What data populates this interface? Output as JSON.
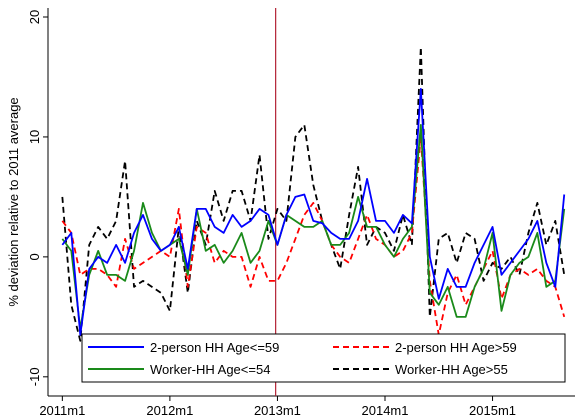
{
  "chart_data": {
    "type": "line",
    "y_label": "% deviation relative to 2011 average",
    "x": [
      0,
      1,
      2,
      3,
      4,
      5,
      6,
      7,
      8,
      9,
      10,
      11,
      12,
      13,
      14,
      15,
      16,
      17,
      18,
      19,
      20,
      21,
      22,
      23,
      24,
      25,
      26,
      27,
      28,
      29,
      30,
      31,
      32,
      33,
      34,
      35,
      36,
      37,
      38,
      39,
      40,
      41,
      42,
      43,
      44,
      45,
      46,
      47,
      48,
      49,
      50,
      51,
      52,
      53,
      54,
      55,
      56
    ],
    "xlim": [
      -1.6,
      57.2
    ],
    "xticks": [
      {
        "value": 0,
        "label": "2011m1"
      },
      {
        "value": 12,
        "label": "2012m1"
      },
      {
        "value": 24,
        "label": "2013m1"
      },
      {
        "value": 36,
        "label": "2014m1"
      },
      {
        "value": 48,
        "label": "2015m1"
      }
    ],
    "ylim": [
      -11.6,
      20.75
    ],
    "yticks": [
      -10,
      0,
      10,
      20
    ],
    "vline": {
      "value": 23.8,
      "color": "#b22234"
    },
    "legend": "bottom",
    "series": [
      {
        "name": "2-person HH Age<=59",
        "color": "#0000ff",
        "dash": false,
        "values": [
          1,
          2,
          -6.5,
          -1,
          0,
          -0.5,
          1,
          -0.5,
          2,
          3.5,
          1.5,
          0.5,
          1,
          2.5,
          -1,
          4,
          4,
          2.5,
          2,
          3.5,
          2.5,
          3,
          4,
          3.5,
          1,
          3.5,
          5,
          5.2,
          3,
          2.8,
          2,
          1.5,
          1.5,
          3,
          6.5,
          3,
          3,
          2,
          3.5,
          2.8,
          14,
          0,
          -3.5,
          -1,
          -2.5,
          -2.5,
          -0.5,
          1,
          2.5,
          -1.5,
          -0.5,
          0.5,
          1.5,
          3,
          -0.5,
          -2.5,
          5.2
        ]
      },
      {
        "name": "2-person HH Age>59",
        "color": "#ff0000",
        "dash": true,
        "values": [
          3,
          2,
          -1.5,
          -1,
          -1,
          -1.5,
          -2.5,
          1.5,
          -1,
          -0.5,
          0,
          0.5,
          0,
          4,
          -2.5,
          2.5,
          2,
          -0.5,
          0.5,
          0,
          0,
          -2.5,
          0,
          -2,
          -2,
          -0.5,
          1.5,
          3.5,
          4.5,
          3,
          1,
          0,
          -0.5,
          1.5,
          3.5,
          1.5,
          1,
          0,
          0.5,
          2,
          10,
          -2,
          -6.5,
          -3,
          -1.5,
          -4,
          -2.5,
          -1,
          0.5,
          -3.5,
          -1.5,
          -1,
          -1.5,
          -1,
          -2,
          -2.5,
          -5
        ]
      },
      {
        "name": "Worker-HH Age<=54",
        "color": "#1a8a1a",
        "dash": false,
        "values": [
          1.5,
          0.5,
          -6,
          -1.5,
          0.5,
          -1.5,
          -1.5,
          -2,
          0.5,
          4.5,
          2,
          0.5,
          1,
          1.5,
          -1.5,
          4,
          0.5,
          1,
          -0.5,
          0.5,
          2,
          -0.5,
          0.5,
          3,
          1,
          3.5,
          3,
          2.5,
          2.5,
          3,
          1,
          1,
          2,
          5,
          2.5,
          2.5,
          1,
          0,
          1.5,
          2.5,
          11,
          -3,
          -4,
          -2.5,
          -5,
          -5,
          -2.5,
          -1,
          2,
          -4.5,
          -1.5,
          -0.5,
          0,
          2,
          -2.5,
          -2,
          4
        ]
      },
      {
        "name": "Worker-HH Age>55",
        "color": "#000000",
        "dash": true,
        "values": [
          5,
          -4,
          -7,
          1,
          2.5,
          1.5,
          3,
          8,
          -2.5,
          -2,
          -2.5,
          -3,
          -4.5,
          2.5,
          -3,
          3,
          1,
          5.5,
          3,
          5.5,
          5.5,
          3,
          8.5,
          1.5,
          4,
          3,
          10,
          11,
          6,
          3,
          1,
          -1,
          3.5,
          7.5,
          1,
          2.5,
          2,
          0.5,
          3.5,
          1,
          17.5,
          -5,
          1.5,
          2,
          -0.5,
          2,
          1.5,
          -2,
          -0.5,
          -1,
          0,
          -1.5,
          2,
          4.5,
          1,
          3,
          -1.5
        ]
      }
    ]
  }
}
